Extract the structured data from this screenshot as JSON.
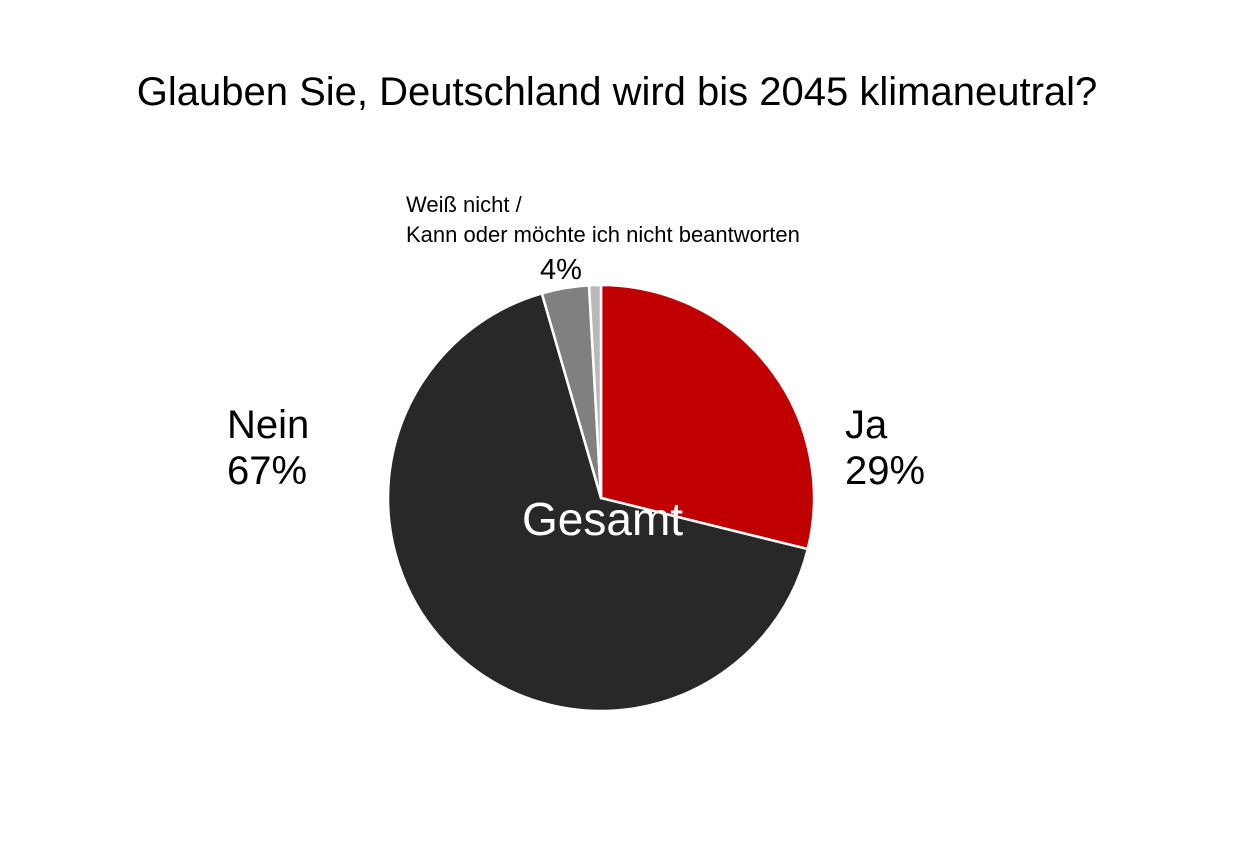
{
  "chart_data": {
    "type": "pie",
    "title": "Glauben Sie, Deutschland wird bis 2045 klimaneutral?",
    "center_label": "Gesamt",
    "slices": [
      {
        "name": "Ja",
        "value": 29,
        "value_label": "29%",
        "color": "#c00000"
      },
      {
        "name": "Nein",
        "value": 67,
        "value_label": "67%",
        "color": "#282828"
      },
      {
        "name_line1": "Weiß nicht /",
        "name_line2": "Kann oder möchte ich nicht beantworten",
        "value": 3.6,
        "value_label": "4%",
        "color": "#808080"
      },
      {
        "name": "",
        "value": 0.9,
        "value_label": "",
        "color": "#b8b8b8"
      }
    ],
    "start_angle": "12 o'clock",
    "direction": "clockwise",
    "slice_border_color": "#ffffff"
  }
}
